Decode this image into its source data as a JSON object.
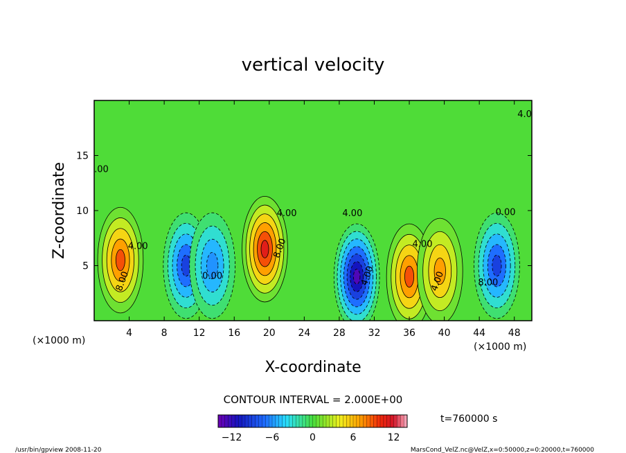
{
  "chart_data": {
    "type": "heatmap",
    "title": "vertical velocity",
    "xlabel": "X-coordinate",
    "ylabel": "Z-coordinate",
    "x_unit": "(×1000 m)",
    "y_unit": "(×1000 m)",
    "xlim": [
      0,
      50
    ],
    "ylim": [
      0,
      20
    ],
    "x_ticks": [
      4,
      8,
      12,
      16,
      20,
      24,
      28,
      32,
      36,
      40,
      44,
      48
    ],
    "y_ticks": [
      5,
      10,
      15
    ],
    "contour_interval_text": "CONTOUR INTERVAL = 2.000E+00",
    "contour_labels": [
      "0.00",
      "4.00",
      "8.00",
      "4.00",
      "8.00",
      "4.00",
      "4.00",
      "4.00",
      "4.00",
      "8.00",
      "4.00",
      "0.00",
      "0.00"
    ],
    "colorbar": {
      "range": [
        -14,
        14
      ],
      "ticks": [
        -12,
        -6,
        0,
        6,
        12
      ]
    },
    "time_text": "t=760000 s",
    "cells": [
      {
        "x": 3,
        "z": 5.5,
        "w": 9.5
      },
      {
        "x": 10.5,
        "z": 5,
        "w": -9
      },
      {
        "x": 13.5,
        "z": 5,
        "w": -6
      },
      {
        "x": 19.5,
        "z": 6.5,
        "w": 11.5
      },
      {
        "x": 30,
        "z": 4,
        "w": -13
      },
      {
        "x": 36,
        "z": 4,
        "w": 9
      },
      {
        "x": 39.5,
        "z": 4.5,
        "w": 7
      },
      {
        "x": 46,
        "z": 5,
        "w": -9
      }
    ]
  },
  "footer": {
    "left": "/usr/bin/gpview  2008-11-20",
    "right": "MarsCond_VelZ.nc@VelZ,x=0:50000,z=0:20000,t=760000"
  },
  "colors": {
    "neg_max": "#7a00c8",
    "neg": "#1e28c8",
    "zero": "#3cdc32",
    "pos": "#ff8c00",
    "pos_max": "#ffb4c8"
  }
}
